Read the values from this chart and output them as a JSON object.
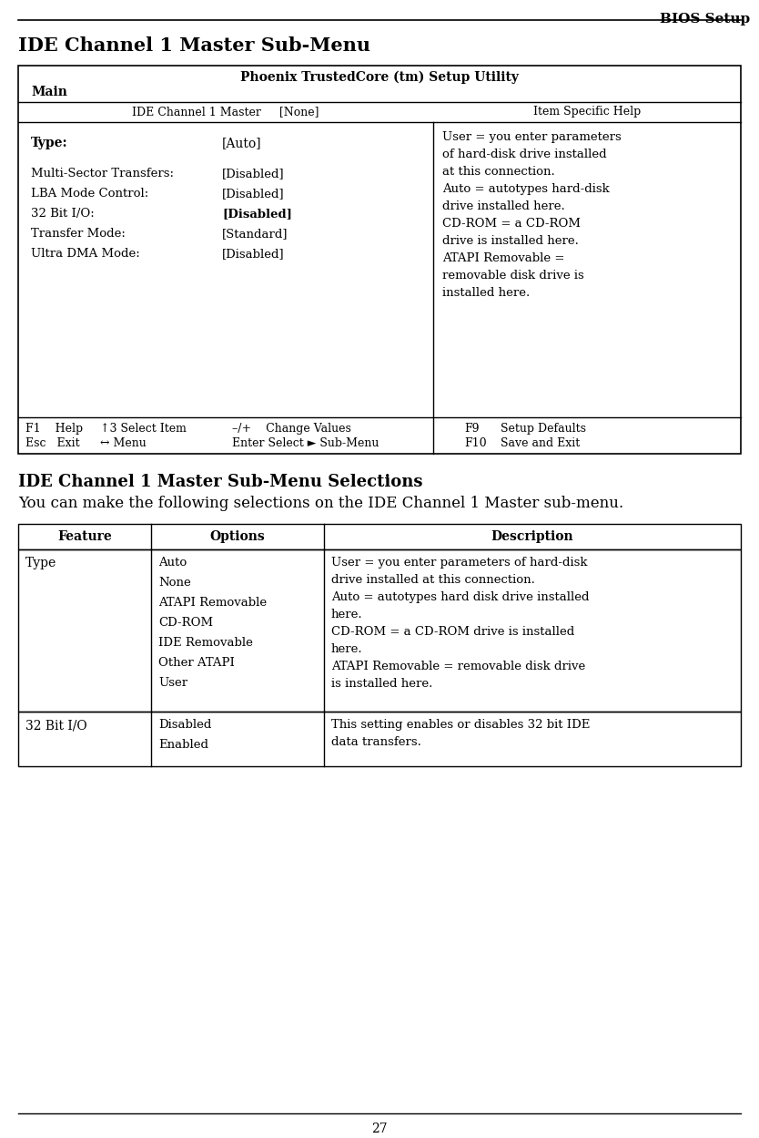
{
  "page_title": "BIOS Setup",
  "section1_title": "IDE Channel 1 Master Sub-Menu",
  "bios_header": "Phoenix TrustedCore (tm) Setup Utility",
  "bios_submenu": "Main",
  "bios_items": [
    [
      "Type:",
      "[Auto]",
      true
    ],
    [
      "Multi-Sector Transfers:",
      "[Disabled]",
      false
    ],
    [
      "LBA Mode Control:",
      "[Disabled]",
      false
    ],
    [
      "32 Bit I/O:",
      "[Disabled]",
      true
    ],
    [
      "Transfer Mode:",
      "[Standard]",
      false
    ],
    [
      "Ultra DMA Mode:",
      "[Disabled]",
      false
    ]
  ],
  "bios_help_lines": [
    "User = you enter parameters",
    "of hard-disk drive installed",
    "at this connection.",
    "Auto = autotypes hard-disk",
    "drive installed here.",
    "CD-ROM = a CD-ROM",
    "drive is installed here.",
    "ATAPI Removable =",
    "removable disk drive is",
    "installed here."
  ],
  "bios_footer_row1_left": "F1    Help",
  "bios_footer_row1_mid1": "↑3 Select Item",
  "bios_footer_row1_mid2": "–/+    Change Values",
  "bios_footer_row1_right1": "F9",
  "bios_footer_row1_right2": "Setup Defaults",
  "bios_footer_row2_left": "Esc   Exit",
  "bios_footer_row2_mid1": "↔ Menu",
  "bios_footer_row2_mid2": "Enter Select ► Sub-Menu",
  "bios_footer_row2_right1": "F10",
  "bios_footer_row2_right2": "Save and Exit",
  "section2_title": "IDE Channel 1 Master Sub-Menu Selections",
  "section2_subtitle": "You can make the following selections on the IDE Channel 1 Master sub-menu.",
  "table_headers": [
    "Feature",
    "Options",
    "Description"
  ],
  "row1_feature": "Type",
  "row1_options": [
    "Auto",
    "None",
    "ATAPI Removable",
    "CD-ROM",
    "IDE Removable",
    "Other ATAPI",
    "User"
  ],
  "row1_desc_lines": [
    "User = you enter parameters of hard-disk",
    "drive installed at this connection.",
    "Auto = autotypes hard disk drive installed",
    "here.",
    "CD-ROM = a CD-ROM drive is installed",
    "here.",
    "ATAPI Removable = removable disk drive",
    "is installed here."
  ],
  "row2_feature": "32 Bit I/O",
  "row2_options": [
    "Disabled",
    "Enabled"
  ],
  "row2_desc_lines": [
    "This setting enables or disables 32 bit IDE",
    "data transfers."
  ],
  "page_number": "27",
  "bg_color": "#ffffff",
  "text_color": "#000000"
}
